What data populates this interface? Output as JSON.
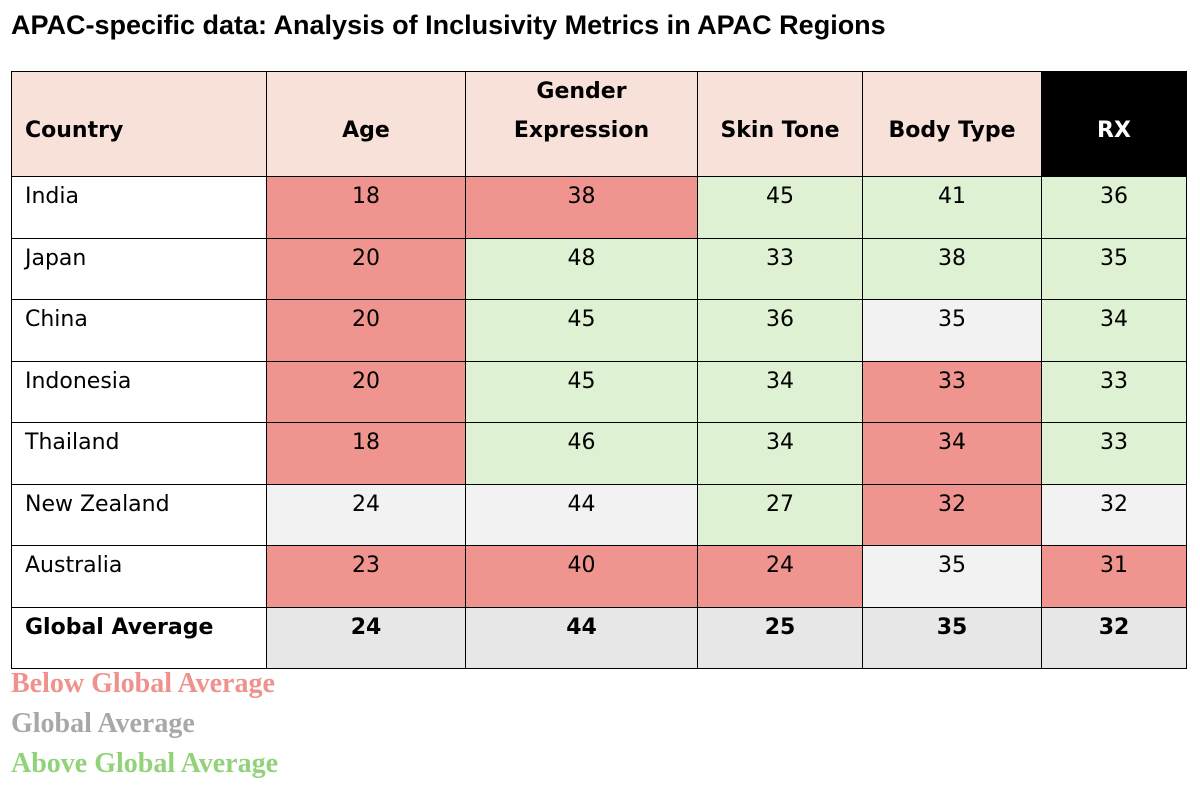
{
  "chart_data": {
    "type": "table",
    "title": "APAC-specific data: Analysis of Inclusivity Metrics in APAC Regions",
    "columns": [
      "Country",
      "Age",
      "Gender Expression",
      "Skin Tone",
      "Body Type",
      "RX"
    ],
    "column_lines": {
      "gender_expression": [
        "Gender",
        "Expression"
      ]
    },
    "rows": [
      {
        "country": "India",
        "age": "18",
        "gender_expression": "38",
        "skin_tone": "45",
        "body_type": "41",
        "rx": "36",
        "status": [
          "below",
          "below",
          "above",
          "above",
          "above"
        ]
      },
      {
        "country": "Japan",
        "age": "20",
        "gender_expression": "48",
        "skin_tone": "33",
        "body_type": "38",
        "rx": "35",
        "status": [
          "below",
          "above",
          "above",
          "above",
          "above"
        ]
      },
      {
        "country": "China",
        "age": "20",
        "gender_expression": "45",
        "skin_tone": "36",
        "body_type": "35",
        "rx": "34",
        "status": [
          "below",
          "above",
          "above",
          "avg",
          "above"
        ]
      },
      {
        "country": "Indonesia",
        "age": "20",
        "gender_expression": "45",
        "skin_tone": "34",
        "body_type": "33",
        "rx": "33",
        "status": [
          "below",
          "above",
          "above",
          "below",
          "above"
        ]
      },
      {
        "country": "Thailand",
        "age": "18",
        "gender_expression": "46",
        "skin_tone": "34",
        "body_type": "34",
        "rx": "33",
        "status": [
          "below",
          "above",
          "above",
          "below",
          "above"
        ]
      },
      {
        "country": "New Zealand",
        "age": "24",
        "gender_expression": "44",
        "skin_tone": "27",
        "body_type": "32",
        "rx": "32",
        "status": [
          "avg",
          "avg",
          "above",
          "below",
          "avg"
        ]
      },
      {
        "country": "Australia",
        "age": "23",
        "gender_expression": "40",
        "skin_tone": "24",
        "body_type": "35",
        "rx": "31",
        "status": [
          "below",
          "below",
          "below",
          "avg",
          "below"
        ]
      }
    ],
    "global_average": {
      "country": "Global Average",
      "age": "24",
      "gender_expression": "44",
      "skin_tone": "25",
      "body_type": "35",
      "rx": "32"
    },
    "legend": [
      {
        "label": "Below Global Average",
        "color": "#ef918c"
      },
      {
        "label": "Global Average",
        "color": "#a8a8a8"
      },
      {
        "label": "Above Global Average",
        "color": "#92d27a"
      }
    ],
    "cell_colors": {
      "below": "#f0948f",
      "avg": "#f2f2f2",
      "above": "#dff1d3",
      "header": "#f7e1d8",
      "header_rx": "#000000",
      "global": "#e7e7e7"
    }
  }
}
